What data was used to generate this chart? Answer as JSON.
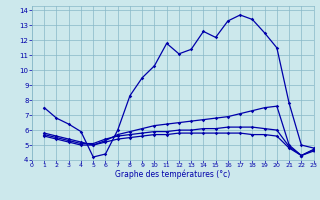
{
  "title": "Graphe des températures (°c)",
  "bg_color": "#cce8ec",
  "grid_color": "#88b8c8",
  "line_color": "#0000aa",
  "xlim": [
    0,
    23
  ],
  "ylim": [
    4,
    14.3
  ],
  "xticks": [
    0,
    1,
    2,
    3,
    4,
    5,
    6,
    7,
    8,
    9,
    10,
    11,
    12,
    13,
    14,
    15,
    16,
    17,
    18,
    19,
    20,
    21,
    22,
    23
  ],
  "yticks": [
    4,
    5,
    6,
    7,
    8,
    9,
    10,
    11,
    12,
    13,
    14
  ],
  "series1_x": [
    1,
    2,
    3,
    4,
    5,
    6,
    7,
    8,
    9,
    10,
    11,
    12,
    13,
    14,
    15,
    16,
    17,
    18,
    19,
    20,
    21,
    22,
    23
  ],
  "series1_y": [
    7.5,
    6.8,
    6.4,
    5.9,
    4.2,
    4.4,
    6.0,
    8.3,
    9.5,
    10.3,
    11.8,
    11.1,
    11.4,
    12.6,
    12.2,
    13.3,
    13.7,
    13.4,
    12.5,
    11.5,
    7.8,
    5.0,
    4.8
  ],
  "series2_x": [
    1,
    2,
    3,
    4,
    5,
    6,
    7,
    8,
    9,
    10,
    11,
    12,
    13,
    14,
    15,
    16,
    17,
    18,
    19,
    20,
    21,
    22,
    23
  ],
  "series2_y": [
    5.8,
    5.6,
    5.4,
    5.2,
    5.0,
    5.3,
    5.7,
    5.9,
    6.1,
    6.3,
    6.4,
    6.5,
    6.6,
    6.7,
    6.8,
    6.9,
    7.1,
    7.3,
    7.5,
    7.6,
    5.0,
    4.3,
    4.7
  ],
  "series3_x": [
    1,
    2,
    3,
    4,
    5,
    6,
    7,
    8,
    9,
    10,
    11,
    12,
    13,
    14,
    15,
    16,
    17,
    18,
    19,
    20,
    21,
    22,
    23
  ],
  "series3_y": [
    5.7,
    5.5,
    5.3,
    5.1,
    5.1,
    5.4,
    5.6,
    5.7,
    5.8,
    5.9,
    5.9,
    6.0,
    6.0,
    6.1,
    6.1,
    6.2,
    6.2,
    6.2,
    6.1,
    6.0,
    4.9,
    4.3,
    4.7
  ],
  "series4_x": [
    1,
    2,
    3,
    4,
    5,
    6,
    7,
    8,
    9,
    10,
    11,
    12,
    13,
    14,
    15,
    16,
    17,
    18,
    19,
    20,
    21,
    22,
    23
  ],
  "series4_y": [
    5.6,
    5.4,
    5.2,
    5.0,
    5.0,
    5.2,
    5.4,
    5.5,
    5.6,
    5.7,
    5.7,
    5.8,
    5.8,
    5.8,
    5.8,
    5.8,
    5.8,
    5.7,
    5.7,
    5.6,
    4.8,
    4.3,
    4.6
  ]
}
